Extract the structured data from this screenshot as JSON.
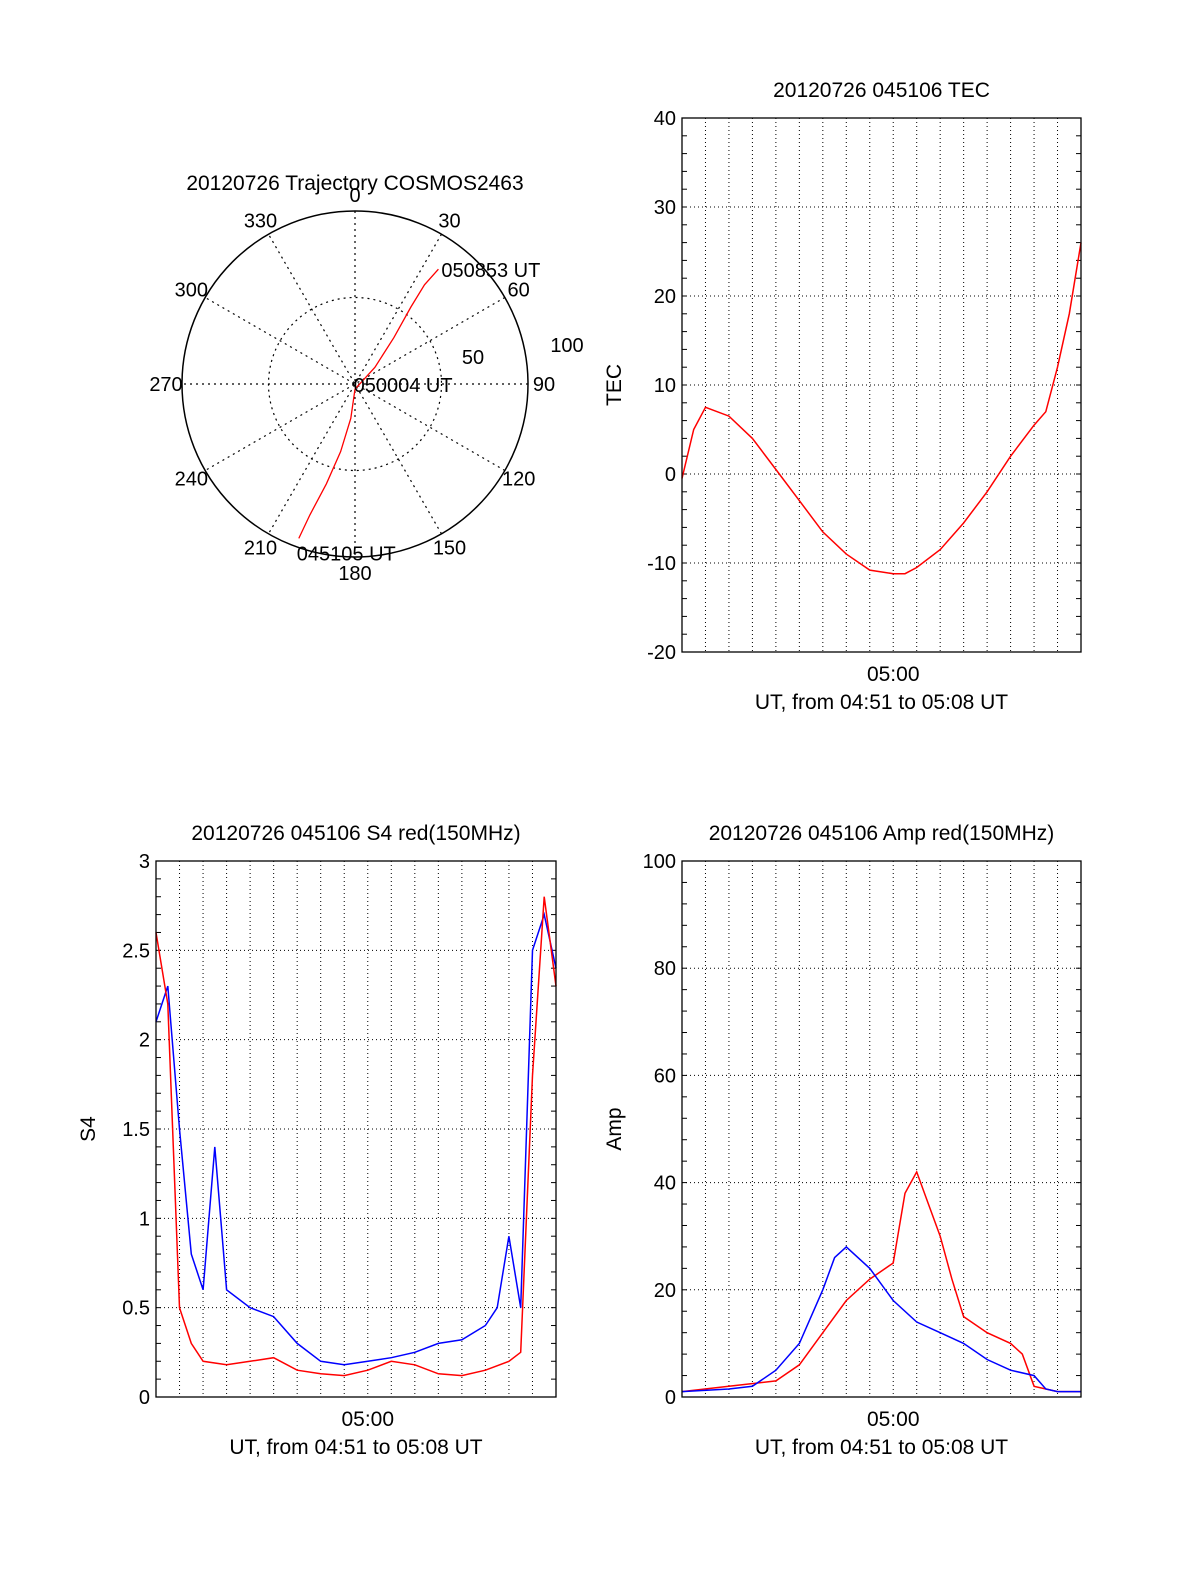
{
  "chart_data": [
    {
      "type": "polar",
      "title": "20120726 Trajectory COSMOS2463",
      "azimuth_labels": [
        "0",
        "30",
        "60",
        "90",
        "120",
        "150",
        "180",
        "210",
        "240",
        "270",
        "300",
        "330"
      ],
      "radial_labels": [
        "50",
        "100"
      ],
      "radial_range": [
        0,
        100
      ],
      "grid": true,
      "color": "#ff0000",
      "trajectory": [
        {
          "az": 200,
          "r": 95
        },
        {
          "az": 199,
          "r": 80
        },
        {
          "az": 196,
          "r": 60
        },
        {
          "az": 192,
          "r": 40
        },
        {
          "az": 187,
          "r": 20
        },
        {
          "az": 180,
          "r": 3
        },
        {
          "az": 50,
          "r": 15
        },
        {
          "az": 40,
          "r": 35
        },
        {
          "az": 36,
          "r": 55
        },
        {
          "az": 35,
          "r": 70
        },
        {
          "az": 36,
          "r": 82
        }
      ],
      "annotations": [
        {
          "text": "050853 UT",
          "az": 36,
          "r": 82
        },
        {
          "text": "050004 UT",
          "az": 90,
          "r": 5
        },
        {
          "text": "045105 UT",
          "az": 200,
          "r": 95
        }
      ]
    },
    {
      "type": "line",
      "title": "20120726 045106 TEC",
      "xlabel": "UT, from 04:51 to 05:08 UT",
      "ylabel": "TEC",
      "xlim": [
        "04:51",
        "05:08"
      ],
      "ylim": [
        -20,
        40
      ],
      "yticks": [
        "-20",
        "-10",
        "0",
        "10",
        "20",
        "30",
        "40"
      ],
      "xticks": [
        {
          "label": "05:00",
          "t": "05:00"
        }
      ],
      "grid": true,
      "series": [
        {
          "color": "#ff0000",
          "x": [
            "04:51",
            "04:51:30",
            "04:52",
            "04:53",
            "04:54",
            "04:55",
            "04:56",
            "04:57",
            "04:58",
            "04:59",
            "05:00",
            "05:00:30",
            "05:01",
            "05:02",
            "05:03",
            "05:04",
            "05:05",
            "05:06",
            "05:06:30",
            "05:07",
            "05:07:30",
            "05:08"
          ],
          "y": [
            -0.5,
            5,
            7.5,
            6.5,
            4,
            0.5,
            -3,
            -6.5,
            -9,
            -10.8,
            -11.2,
            -11.2,
            -10.5,
            -8.5,
            -5.5,
            -2,
            2,
            5.5,
            7,
            12,
            18,
            26
          ]
        }
      ]
    },
    {
      "type": "line",
      "title": "20120726 045106 S4 red(150MHz)",
      "xlabel": "UT, from 04:51 to 05:08 UT",
      "ylabel": "S4",
      "xlim": [
        "04:51",
        "05:08"
      ],
      "ylim": [
        0,
        3
      ],
      "yticks": [
        "0",
        "0.5",
        "1",
        "1.5",
        "2",
        "2.5",
        "3"
      ],
      "xticks": [
        {
          "label": "05:00",
          "t": "05:00"
        }
      ],
      "grid": true,
      "series": [
        {
          "color": "#0000ff",
          "x": [
            "04:51",
            "04:51:30",
            "04:52",
            "04:52:30",
            "04:53",
            "04:53:30",
            "04:54",
            "04:55",
            "04:56",
            "04:57",
            "04:58",
            "04:59",
            "05:00",
            "05:01",
            "05:02",
            "05:03",
            "05:04",
            "05:05",
            "05:05:30",
            "05:06",
            "05:06:30",
            "05:07",
            "05:07:30",
            "05:08"
          ],
          "y": [
            2.1,
            2.3,
            1.5,
            0.8,
            0.6,
            1.4,
            0.6,
            0.5,
            0.45,
            0.3,
            0.2,
            0.18,
            0.2,
            0.22,
            0.25,
            0.3,
            0.32,
            0.4,
            0.5,
            0.9,
            0.5,
            2.5,
            2.7,
            2.4
          ]
        },
        {
          "color": "#ff0000",
          "x": [
            "04:51",
            "04:51:30",
            "04:52",
            "04:52:30",
            "04:53",
            "04:54",
            "04:55",
            "04:56",
            "04:57",
            "04:58",
            "04:59",
            "05:00",
            "05:01",
            "05:02",
            "05:03",
            "05:04",
            "05:05",
            "05:06",
            "05:06:30",
            "05:07",
            "05:07:30",
            "05:08"
          ],
          "y": [
            2.6,
            2.2,
            0.5,
            0.3,
            0.2,
            0.18,
            0.2,
            0.22,
            0.15,
            0.13,
            0.12,
            0.15,
            0.2,
            0.18,
            0.13,
            0.12,
            0.15,
            0.2,
            0.25,
            1.8,
            2.8,
            2.3
          ]
        }
      ]
    },
    {
      "type": "line",
      "title": "20120726 045106 Amp red(150MHz)",
      "xlabel": "UT, from 04:51 to 05:08 UT",
      "ylabel": "Amp",
      "xlim": [
        "04:51",
        "05:08"
      ],
      "ylim": [
        0,
        100
      ],
      "yticks": [
        "0",
        "20",
        "40",
        "60",
        "80",
        "100"
      ],
      "xticks": [
        {
          "label": "05:00",
          "t": "05:00"
        }
      ],
      "grid": true,
      "series": [
        {
          "color": "#ff0000",
          "x": [
            "04:51",
            "04:53",
            "04:55",
            "04:56",
            "04:57",
            "04:58",
            "04:59",
            "05:00",
            "05:00:30",
            "05:01",
            "05:01:30",
            "05:02",
            "05:02:30",
            "05:03",
            "05:04",
            "05:05",
            "05:05:30",
            "05:06",
            "05:07",
            "05:08"
          ],
          "y": [
            1,
            2,
            3,
            6,
            12,
            18,
            22,
            25,
            38,
            42,
            36,
            30,
            22,
            15,
            12,
            10,
            8,
            2,
            1,
            1
          ]
        },
        {
          "color": "#0000ff",
          "x": [
            "04:51",
            "04:53",
            "04:54",
            "04:55",
            "04:56",
            "04:57",
            "04:57:30",
            "04:58",
            "04:59",
            "05:00",
            "05:01",
            "05:02",
            "05:03",
            "05:04",
            "05:05",
            "05:06",
            "05:06:30",
            "05:07",
            "05:08"
          ],
          "y": [
            1,
            1.5,
            2,
            5,
            10,
            20,
            26,
            28,
            24,
            18,
            14,
            12,
            10,
            7,
            5,
            4,
            1.5,
            1,
            1
          ]
        }
      ]
    }
  ]
}
